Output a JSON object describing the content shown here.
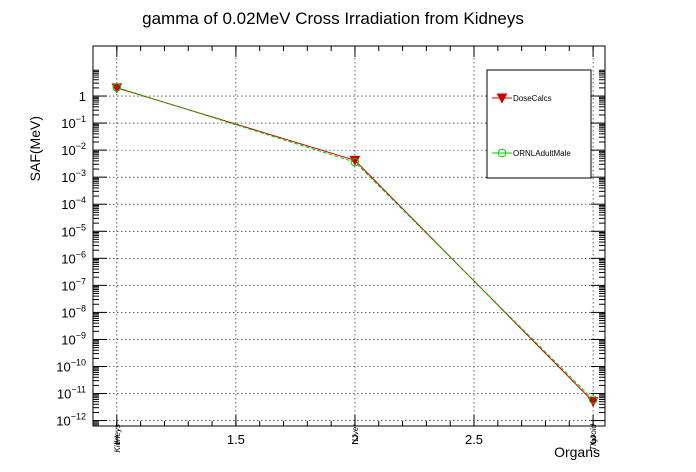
{
  "chart_data": {
    "type": "line",
    "title": "gamma of 0.02MeV Cross Irradiation from Kidneys",
    "xlabel": "Organs",
    "ylabel": "SAF(MeV)",
    "x_ticks": [
      "1",
      "1.5",
      "2",
      "2.5",
      "3"
    ],
    "xlim": [
      0.9,
      3.05
    ],
    "ylim_log10": [
      -12.2,
      1.85
    ],
    "y_scale": "log",
    "y_ticks": [
      {
        "base": "1",
        "exp": ""
      },
      {
        "base": "10",
        "exp": "−1"
      },
      {
        "base": "10",
        "exp": "−2"
      },
      {
        "base": "10",
        "exp": "−3"
      },
      {
        "base": "10",
        "exp": "−4"
      },
      {
        "base": "10",
        "exp": "−5"
      },
      {
        "base": "10",
        "exp": "−6"
      },
      {
        "base": "10",
        "exp": "−7"
      },
      {
        "base": "10",
        "exp": "−8"
      },
      {
        "base": "10",
        "exp": "−9"
      },
      {
        "base": "10",
        "exp": "−10"
      },
      {
        "base": "10",
        "exp": "−11"
      },
      {
        "base": "10",
        "exp": "−12"
      }
    ],
    "categories": [
      "Kidneys",
      "Liver",
      "Thyroid"
    ],
    "x": [
      1,
      2,
      3
    ],
    "series": [
      {
        "name": "DoseCalcs",
        "values": [
          2.0,
          0.0042,
          5e-12
        ],
        "color": "#cc0000",
        "marker": "triangle-down"
      },
      {
        "name": "ORNLAdultMale",
        "values": [
          2.1,
          0.0036,
          6e-12
        ],
        "color": "#00cc00",
        "marker": "open-circle"
      }
    ],
    "grid": true,
    "legend_position": "top-right"
  }
}
